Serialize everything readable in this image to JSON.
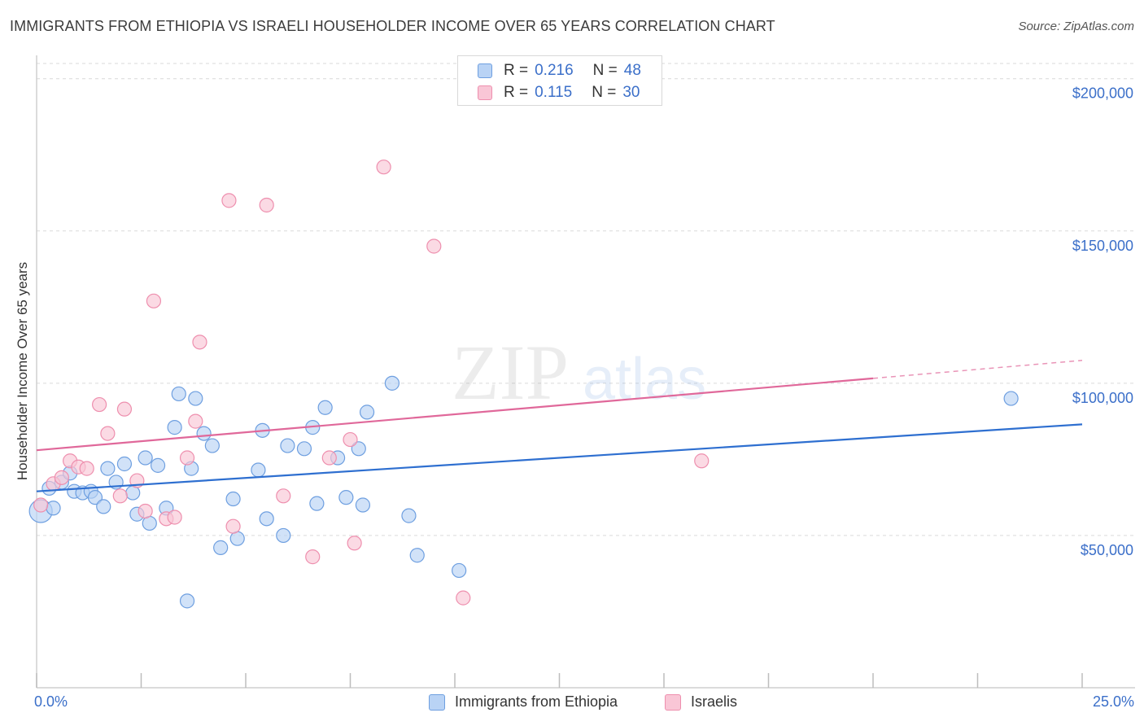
{
  "title": "IMMIGRANTS FROM ETHIOPIA VS ISRAELI HOUSEHOLDER INCOME OVER 65 YEARS CORRELATION CHART",
  "source": "Source: ZipAtlas.com",
  "watermark": {
    "zip": "ZIP",
    "atlas": "atlas"
  },
  "colors": {
    "blue_fill": "#b9d3f5",
    "blue_stroke": "#6e9fe0",
    "blue_line": "#2e6fd0",
    "pink_fill": "#f9c6d6",
    "pink_stroke": "#ee8fae",
    "pink_line": "#e0689a",
    "axis_text": "#3b6fc9",
    "grid": "#d9d9d9"
  },
  "legend_top": {
    "rows": [
      {
        "r_label": "R =",
        "r_value": "0.216",
        "n_label": "N =",
        "n_value": "48",
        "color": "blue"
      },
      {
        "r_label": "R =",
        "r_value": "0.115",
        "n_label": "N =",
        "n_value": "30",
        "color": "pink"
      }
    ]
  },
  "legend_bottom": [
    {
      "label": "Immigrants from Ethiopia",
      "color": "blue"
    },
    {
      "label": "Israelis",
      "color": "pink"
    }
  ],
  "chart_data": {
    "type": "scatter",
    "title": "IMMIGRANTS FROM ETHIOPIA VS ISRAELI HOUSEHOLDER INCOME OVER 65 YEARS CORRELATION CHART",
    "xlabel": "",
    "ylabel": "Householder Income Over 65 years",
    "xlim": [
      0,
      25
    ],
    "ylim": [
      0,
      205000
    ],
    "x_tick_labels": [
      "0.0%",
      "25.0%"
    ],
    "y_ticks": [
      50000,
      100000,
      150000,
      200000
    ],
    "y_tick_labels": [
      "$50,000",
      "$100,000",
      "$150,000",
      "$200,000"
    ],
    "grid": true,
    "legend_position": "top-center",
    "series": [
      {
        "name": "Immigrants from Ethiopia",
        "color": "blue",
        "trend": {
          "x": [
            0,
            25
          ],
          "y": [
            64500,
            86500
          ],
          "dashed_from": null
        },
        "points": [
          [
            0.1,
            58000
          ],
          [
            0.3,
            65500
          ],
          [
            0.4,
            59000
          ],
          [
            0.6,
            67500
          ],
          [
            0.8,
            70500
          ],
          [
            0.9,
            64500
          ],
          [
            1.1,
            64000
          ],
          [
            1.3,
            64500
          ],
          [
            1.4,
            62500
          ],
          [
            1.6,
            59500
          ],
          [
            1.7,
            72000
          ],
          [
            1.9,
            67500
          ],
          [
            2.1,
            73500
          ],
          [
            2.3,
            64000
          ],
          [
            2.4,
            57000
          ],
          [
            2.6,
            75500
          ],
          [
            2.7,
            54000
          ],
          [
            2.9,
            73000
          ],
          [
            3.1,
            59000
          ],
          [
            3.3,
            85500
          ],
          [
            3.4,
            96500
          ],
          [
            3.7,
            72000
          ],
          [
            3.8,
            95000
          ],
          [
            4.0,
            83500
          ],
          [
            4.2,
            79500
          ],
          [
            3.6,
            28500
          ],
          [
            4.4,
            46000
          ],
          [
            4.7,
            62000
          ],
          [
            4.8,
            49000
          ],
          [
            5.3,
            71500
          ],
          [
            5.4,
            84500
          ],
          [
            5.5,
            55500
          ],
          [
            5.9,
            50000
          ],
          [
            6.0,
            79500
          ],
          [
            6.4,
            78500
          ],
          [
            6.6,
            85500
          ],
          [
            6.7,
            60500
          ],
          [
            6.9,
            92000
          ],
          [
            7.2,
            75500
          ],
          [
            7.4,
            62500
          ],
          [
            7.7,
            78500
          ],
          [
            7.8,
            60000
          ],
          [
            7.9,
            90500
          ],
          [
            8.5,
            100000
          ],
          [
            8.9,
            56500
          ],
          [
            9.1,
            43500
          ],
          [
            10.1,
            38500
          ],
          [
            23.3,
            95000
          ]
        ]
      },
      {
        "name": "Israelis",
        "color": "pink",
        "trend": {
          "x": [
            0,
            25
          ],
          "y": [
            78000,
            107500
          ],
          "dashed_from": 20
        },
        "points": [
          [
            0.1,
            60000
          ],
          [
            0.4,
            67000
          ],
          [
            0.6,
            69000
          ],
          [
            0.8,
            74500
          ],
          [
            1.0,
            72500
          ],
          [
            1.2,
            72000
          ],
          [
            1.5,
            93000
          ],
          [
            1.7,
            83500
          ],
          [
            2.0,
            63000
          ],
          [
            2.1,
            91500
          ],
          [
            2.4,
            68000
          ],
          [
            2.6,
            58000
          ],
          [
            2.8,
            127000
          ],
          [
            3.1,
            55500
          ],
          [
            3.3,
            56000
          ],
          [
            3.6,
            75500
          ],
          [
            3.8,
            87500
          ],
          [
            3.9,
            113500
          ],
          [
            4.6,
            160000
          ],
          [
            4.7,
            53000
          ],
          [
            5.5,
            158500
          ],
          [
            5.9,
            63000
          ],
          [
            6.6,
            43000
          ],
          [
            7.0,
            75500
          ],
          [
            7.5,
            81500
          ],
          [
            7.6,
            47500
          ],
          [
            8.3,
            171000
          ],
          [
            9.5,
            145000
          ],
          [
            10.2,
            29500
          ],
          [
            15.9,
            74500
          ]
        ]
      }
    ]
  }
}
